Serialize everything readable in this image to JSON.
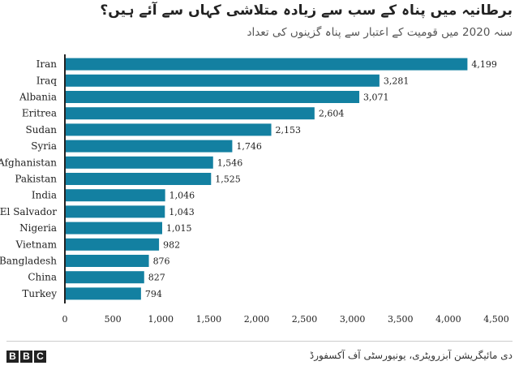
{
  "header": {
    "title": "برطانیہ میں پناہ کے سب سے زیادہ متلاشی کہاں سے آئے ہیں؟",
    "subtitle": "سنہ 2020 میں قومیت کے اعتبار سے پناہ گزینوں کی تعداد"
  },
  "chart_data": {
    "type": "bar",
    "orientation": "horizontal",
    "title": "برطانیہ میں پناہ کے سب سے زیادہ متلاشی کہاں سے آئے ہیں؟",
    "subtitle": "سنہ 2020 میں قومیت کے اعتبار سے پناہ گزینوں کی تعداد",
    "categories": [
      "Iran",
      "Iraq",
      "Albania",
      "Eritrea",
      "Sudan",
      "Syria",
      "Afghanistan",
      "Pakistan",
      "India",
      "El Salvador",
      "Nigeria",
      "Vietnam",
      "Bangladesh",
      "China",
      "Turkey"
    ],
    "values": [
      4199,
      3281,
      3071,
      2604,
      2153,
      1746,
      1546,
      1525,
      1046,
      1043,
      1015,
      982,
      876,
      827,
      794
    ],
    "value_labels": [
      "4,199",
      "3,281",
      "3,071",
      "2,604",
      "2,153",
      "1,746",
      "1,546",
      "1,525",
      "1,046",
      "1,043",
      "1,015",
      "982",
      "876",
      "827",
      "794"
    ],
    "xlim": [
      0,
      4500
    ],
    "xticks": [
      0,
      500,
      1000,
      1500,
      2000,
      2500,
      3000,
      3500,
      4000,
      4500
    ],
    "xtick_labels": [
      "0",
      "500",
      "1,000",
      "1,500",
      "2,000",
      "2,500",
      "3,000",
      "3,500",
      "4,000",
      "4,500"
    ],
    "bar_color": "#1380a1",
    "grid": false,
    "xlabel": "",
    "ylabel": ""
  },
  "footer": {
    "logo": "BBC",
    "source": "دی مائیگریشن آبزرویٹری، یونیورسٹی آف آکسفورڈ"
  }
}
